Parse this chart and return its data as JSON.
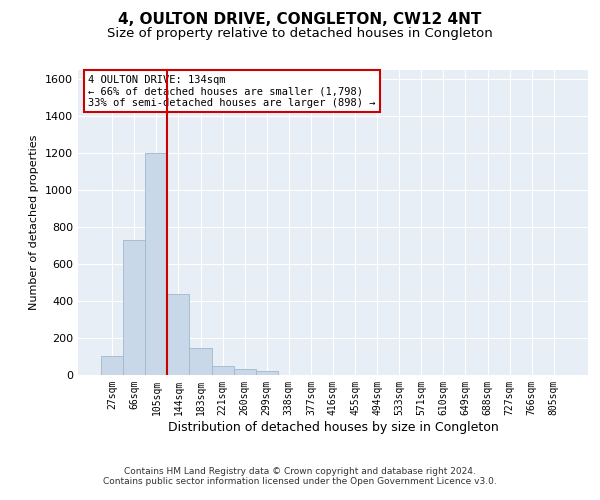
{
  "title": "4, OULTON DRIVE, CONGLETON, CW12 4NT",
  "subtitle": "Size of property relative to detached houses in Congleton",
  "xlabel": "Distribution of detached houses by size in Congleton",
  "ylabel": "Number of detached properties",
  "bar_labels": [
    "27sqm",
    "66sqm",
    "105sqm",
    "144sqm",
    "183sqm",
    "221sqm",
    "260sqm",
    "299sqm",
    "338sqm",
    "377sqm",
    "416sqm",
    "455sqm",
    "494sqm",
    "533sqm",
    "571sqm",
    "610sqm",
    "649sqm",
    "688sqm",
    "727sqm",
    "766sqm",
    "805sqm"
  ],
  "bar_values": [
    105,
    730,
    1200,
    440,
    145,
    50,
    30,
    20,
    0,
    0,
    0,
    0,
    0,
    0,
    0,
    0,
    0,
    0,
    0,
    0,
    0
  ],
  "bar_color": "#c8d8e8",
  "bar_edge_color": "#a0b8cc",
  "ylim": [
    0,
    1650
  ],
  "yticks": [
    0,
    200,
    400,
    600,
    800,
    1000,
    1200,
    1400,
    1600
  ],
  "red_line_x": 2.5,
  "annotation_line1": "4 OULTON DRIVE: 134sqm",
  "annotation_line2": "← 66% of detached houses are smaller (1,798)",
  "annotation_line3": "33% of semi-detached houses are larger (898) →",
  "annotation_box_color": "#ffffff",
  "annotation_box_edge": "#cc0000",
  "footnote1": "Contains HM Land Registry data © Crown copyright and database right 2024.",
  "footnote2": "Contains public sector information licensed under the Open Government Licence v3.0.",
  "background_color": "#ffffff",
  "plot_background_color": "#e8eef5",
  "grid_color": "#ffffff",
  "title_fontsize": 11,
  "subtitle_fontsize": 9.5
}
